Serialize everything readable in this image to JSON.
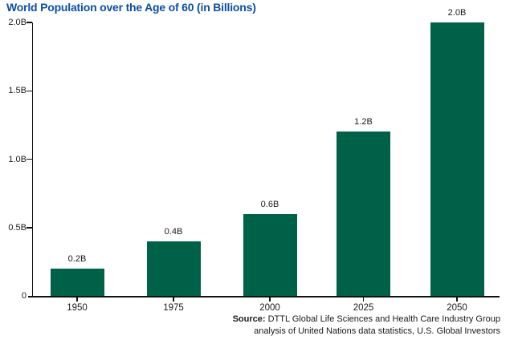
{
  "title": "World Population over the Age of 60 (in Billions)",
  "chart_data": {
    "type": "bar",
    "title": "World Population over the Age of 60 (in Billions)",
    "categories": [
      "1950",
      "1975",
      "2000",
      "2025",
      "2050"
    ],
    "values": [
      0.2,
      0.4,
      0.6,
      1.2,
      2.0
    ],
    "bar_labels": [
      "0.2B",
      "0.4B",
      "0.6B",
      "1.2B",
      "2.0B"
    ],
    "xlabel": "",
    "ylabel": "",
    "ylim": [
      0,
      2.0
    ],
    "yticks": [
      {
        "value": 0,
        "label": "0"
      },
      {
        "value": 0.5,
        "label": "0.5B"
      },
      {
        "value": 1.0,
        "label": "1.0B"
      },
      {
        "value": 1.5,
        "label": "1.5B"
      },
      {
        "value": 2.0,
        "label": "2.0B"
      }
    ],
    "grid": false,
    "legend": "none",
    "bar_color": "#006149"
  },
  "source": {
    "prefix": "Source:",
    "line1_rest": " DTTL Global Life Sciences and Health Care Industry Group",
    "line2": "analysis of United Nations data statistics, U.S. Global Investors"
  },
  "colors": {
    "title_blue": "#0d4ea3",
    "bar_green": "#006149",
    "axis_black": "#111111",
    "text_dark": "#1a1a1a"
  }
}
